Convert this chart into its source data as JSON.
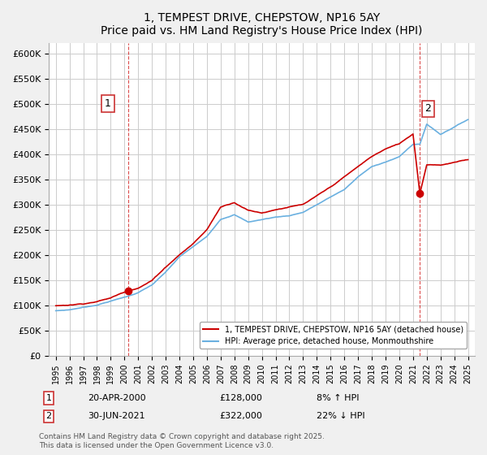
{
  "title": "1, TEMPEST DRIVE, CHEPSTOW, NP16 5AY",
  "subtitle": "Price paid vs. HM Land Registry's House Price Index (HPI)",
  "ylim": [
    0,
    620000
  ],
  "yticks": [
    0,
    50000,
    100000,
    150000,
    200000,
    250000,
    300000,
    350000,
    400000,
    450000,
    500000,
    550000,
    600000
  ],
  "purchase1_year": 2000.3,
  "purchase1_value": 128000,
  "purchase2_year": 2021.5,
  "purchase2_value": 322000,
  "legend_line1": "1, TEMPEST DRIVE, CHEPSTOW, NP16 5AY (detached house)",
  "legend_line2": "HPI: Average price, detached house, Monmouthshire",
  "annotation1_date": "20-APR-2000",
  "annotation1_price": "£128,000",
  "annotation1_hpi": "8% ↑ HPI",
  "annotation2_date": "30-JUN-2021",
  "annotation2_price": "£322,000",
  "annotation2_hpi": "22% ↓ HPI",
  "footnote": "Contains HM Land Registry data © Crown copyright and database right 2025.\nThis data is licensed under the Open Government Licence v3.0.",
  "hpi_color": "#6ab0e0",
  "price_color": "#cc0000",
  "grid_color": "#cccccc",
  "background_color": "#f0f0f0",
  "plot_background": "#ffffff",
  "key_years": [
    1995,
    1996,
    1997,
    1998,
    1999,
    2000.3,
    2001,
    2002,
    2003,
    2004,
    2005,
    2006,
    2007,
    2008,
    2009,
    2010,
    2011,
    2012,
    2013,
    2014,
    2015,
    2016,
    2017,
    2018,
    2019,
    2020,
    2021,
    2021.5,
    2022,
    2023,
    2024,
    2025
  ],
  "key_hpi": [
    88000,
    90000,
    95000,
    100000,
    108000,
    118000,
    125000,
    140000,
    165000,
    195000,
    215000,
    235000,
    270000,
    280000,
    265000,
    270000,
    275000,
    278000,
    285000,
    300000,
    315000,
    330000,
    355000,
    375000,
    385000,
    395000,
    420000,
    420000,
    460000,
    440000,
    455000,
    470000
  ],
  "key_price": [
    95000,
    97000,
    100000,
    105000,
    112000,
    128000,
    133000,
    148000,
    175000,
    200000,
    222000,
    250000,
    295000,
    305000,
    290000,
    285000,
    292000,
    298000,
    302000,
    318000,
    335000,
    355000,
    375000,
    395000,
    410000,
    420000,
    440000,
    322000,
    380000,
    380000,
    385000,
    390000
  ]
}
